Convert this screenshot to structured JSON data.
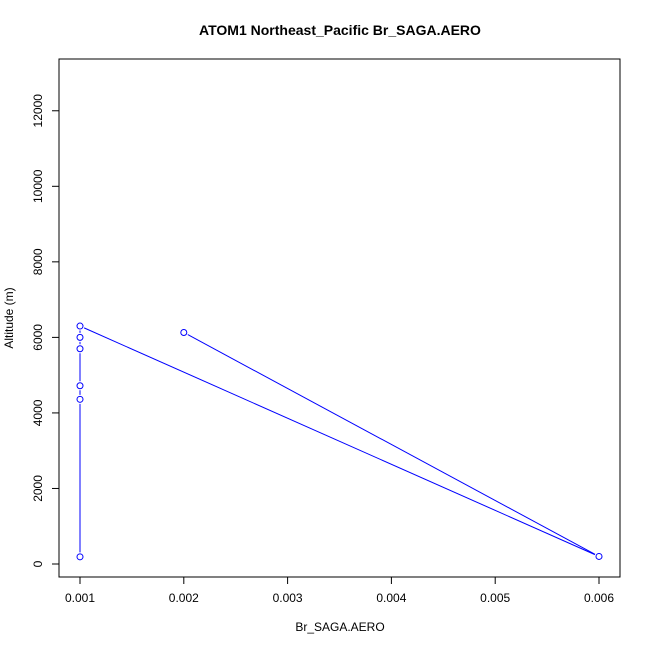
{
  "chart_data": {
    "type": "line",
    "title": "ATOM1 Northeast_Pacific Br_SAGA.AERO",
    "xlabel": "Br_SAGA.AERO",
    "ylabel": "Altitude (m)",
    "xlim": [
      0.00095,
      0.00605
    ],
    "ylim": [
      0,
      13000
    ],
    "x_ticks": [
      0.001,
      0.002,
      0.003,
      0.004,
      0.005,
      0.006
    ],
    "x_tick_labels": [
      "0.001",
      "0.002",
      "0.003",
      "0.004",
      "0.005",
      "0.006"
    ],
    "y_ticks": [
      0,
      2000,
      4000,
      6000,
      8000,
      10000,
      12000
    ],
    "y_tick_labels": [
      "0",
      "2000",
      "4000",
      "6000",
      "8000",
      "10000",
      "12000"
    ],
    "grid": false,
    "legend": "none",
    "series_color": "#0000ff",
    "series": [
      {
        "x": [
          0.002,
          0.006,
          0.001,
          0.001,
          0.001,
          0.001,
          0.001,
          0.001
        ],
        "y": [
          6130,
          200,
          6300,
          6000,
          5700,
          4720,
          4360,
          190
        ]
      }
    ]
  }
}
